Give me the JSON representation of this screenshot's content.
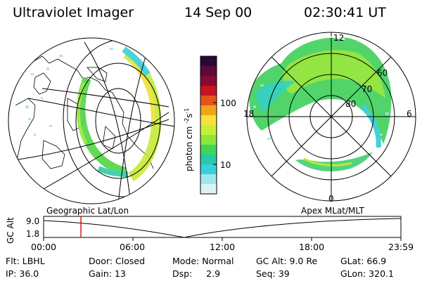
{
  "header": {
    "instrument": "Ultraviolet Imager",
    "date": "14 Sep 00",
    "time": "02:30:41 UT"
  },
  "colorbar": {
    "label": "photon cm",
    "label_exp": "-2",
    "label_s": "s",
    "label_s_exp": "-1",
    "ticks": [
      "100",
      "10"
    ],
    "colors": [
      "#2a0836",
      "#5b0a3d",
      "#8a0a2f",
      "#c81220",
      "#e3551a",
      "#f2a21c",
      "#f5e23a",
      "#c9ee3a",
      "#8ee63c",
      "#3ed65a",
      "#28c9a8",
      "#39d1d8",
      "#9be7ee",
      "#dcf2f3"
    ]
  },
  "left_map": {
    "caption": "Geographic Lat/Lon"
  },
  "right_map": {
    "caption": "Apex  MLat/MLT",
    "mlt_labels": {
      "top": "12",
      "right": "6",
      "bottom": "0",
      "left": "18"
    },
    "lat_labels": [
      "60",
      "70",
      "80"
    ]
  },
  "timeline": {
    "axis_label": "GC Alt",
    "y_ticks": [
      "9.0",
      "1.8"
    ],
    "x_ticks": [
      "00:00",
      "06:00",
      "12:00",
      "18:00",
      "23:59"
    ],
    "current_time_fraction": 0.1044,
    "marker_color": "#d81b1b"
  },
  "footer": {
    "row1": {
      "filter": "Flt: LBHL",
      "door": "Door: Closed",
      "mode": "Mode: Normal",
      "gc_alt": "GC Alt: 9.0 Re",
      "glat": "GLat:  66.9"
    },
    "row2": {
      "ip": "IP: 36.0",
      "gain": "Gain: 13",
      "dsp": "Dsp:     2.9",
      "seq": "Seq: 39",
      "glon": "GLon: 320.1"
    }
  }
}
